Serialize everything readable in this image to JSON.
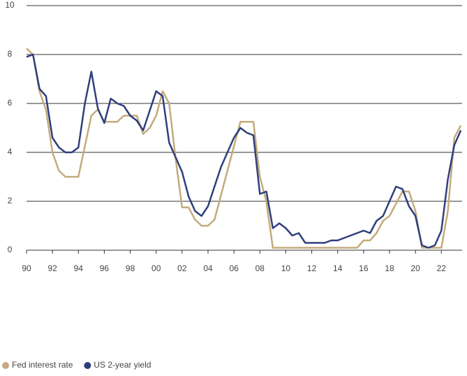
{
  "chart_data": {
    "type": "line",
    "x": [
      1990,
      1990.5,
      1991,
      1991.5,
      1992,
      1992.5,
      1993,
      1993.5,
      1994,
      1994.5,
      1995,
      1995.5,
      1996,
      1996.5,
      1997,
      1997.5,
      1998,
      1998.5,
      1999,
      1999.5,
      2000,
      2000.5,
      2001,
      2001.5,
      2002,
      2002.5,
      2003,
      2003.5,
      2004,
      2004.5,
      2005,
      2005.5,
      2006,
      2006.5,
      2007,
      2007.5,
      2008,
      2008.5,
      2009,
      2009.5,
      2010,
      2010.5,
      2011,
      2011.5,
      2012,
      2012.5,
      2013,
      2013.5,
      2014,
      2014.5,
      2015,
      2015.5,
      2016,
      2016.5,
      2017,
      2017.5,
      2018,
      2018.5,
      2019,
      2019.5,
      2020,
      2020.5,
      2021,
      2021.5,
      2022,
      2022.5,
      2023,
      2023.5
    ],
    "series": [
      {
        "name": "Fed interest rate",
        "color": "#c4aa7c",
        "values": [
          8.25,
          8.0,
          6.5,
          5.75,
          4.0,
          3.25,
          3.0,
          3.0,
          3.0,
          4.25,
          5.5,
          5.75,
          5.25,
          5.25,
          5.25,
          5.5,
          5.5,
          5.5,
          4.75,
          5.0,
          5.5,
          6.5,
          6.0,
          3.75,
          1.75,
          1.75,
          1.25,
          1.0,
          1.0,
          1.25,
          2.25,
          3.25,
          4.25,
          5.25,
          5.25,
          5.25,
          3.0,
          2.0,
          0.1,
          0.1,
          0.1,
          0.1,
          0.1,
          0.1,
          0.1,
          0.1,
          0.1,
          0.1,
          0.1,
          0.1,
          0.1,
          0.1,
          0.4,
          0.4,
          0.7,
          1.2,
          1.4,
          1.9,
          2.4,
          2.4,
          1.6,
          0.1,
          0.1,
          0.1,
          0.1,
          1.6,
          4.6,
          5.1
        ]
      },
      {
        "name": "US 2-year yield",
        "color": "#2f3f7c",
        "values": [
          7.9,
          8.0,
          6.6,
          6.3,
          4.6,
          4.2,
          4.0,
          4.0,
          4.2,
          6.0,
          7.3,
          5.8,
          5.2,
          6.2,
          6.0,
          5.9,
          5.5,
          5.3,
          4.9,
          5.7,
          6.5,
          6.3,
          4.4,
          3.8,
          3.2,
          2.2,
          1.6,
          1.4,
          1.8,
          2.6,
          3.4,
          4.0,
          4.6,
          5.0,
          4.8,
          4.7,
          2.3,
          2.4,
          0.9,
          1.1,
          0.9,
          0.6,
          0.7,
          0.3,
          0.3,
          0.3,
          0.3,
          0.4,
          0.4,
          0.5,
          0.6,
          0.7,
          0.8,
          0.7,
          1.2,
          1.4,
          2.0,
          2.6,
          2.5,
          1.8,
          1.4,
          0.2,
          0.1,
          0.2,
          0.8,
          2.9,
          4.3,
          4.9
        ]
      }
    ],
    "xlim": [
      1990,
      2023.6
    ],
    "xticks": [
      {
        "value": 1990,
        "label": "90"
      },
      {
        "value": 1992,
        "label": "92"
      },
      {
        "value": 1994,
        "label": "94"
      },
      {
        "value": 1996,
        "label": "96"
      },
      {
        "value": 1998,
        "label": "98"
      },
      {
        "value": 2000,
        "label": "00"
      },
      {
        "value": 2002,
        "label": "02"
      },
      {
        "value": 2004,
        "label": "04"
      },
      {
        "value": 2006,
        "label": "06"
      },
      {
        "value": 2008,
        "label": "08"
      },
      {
        "value": 2010,
        "label": "10"
      },
      {
        "value": 2012,
        "label": "12"
      },
      {
        "value": 2014,
        "label": "14"
      },
      {
        "value": 2016,
        "label": "16"
      },
      {
        "value": 2018,
        "label": "18"
      },
      {
        "value": 2020,
        "label": "20"
      },
      {
        "value": 2022,
        "label": "22"
      }
    ],
    "ylim": [
      0,
      10
    ],
    "yticks": [
      0,
      2,
      4,
      6,
      8,
      10
    ],
    "grid": true
  }
}
